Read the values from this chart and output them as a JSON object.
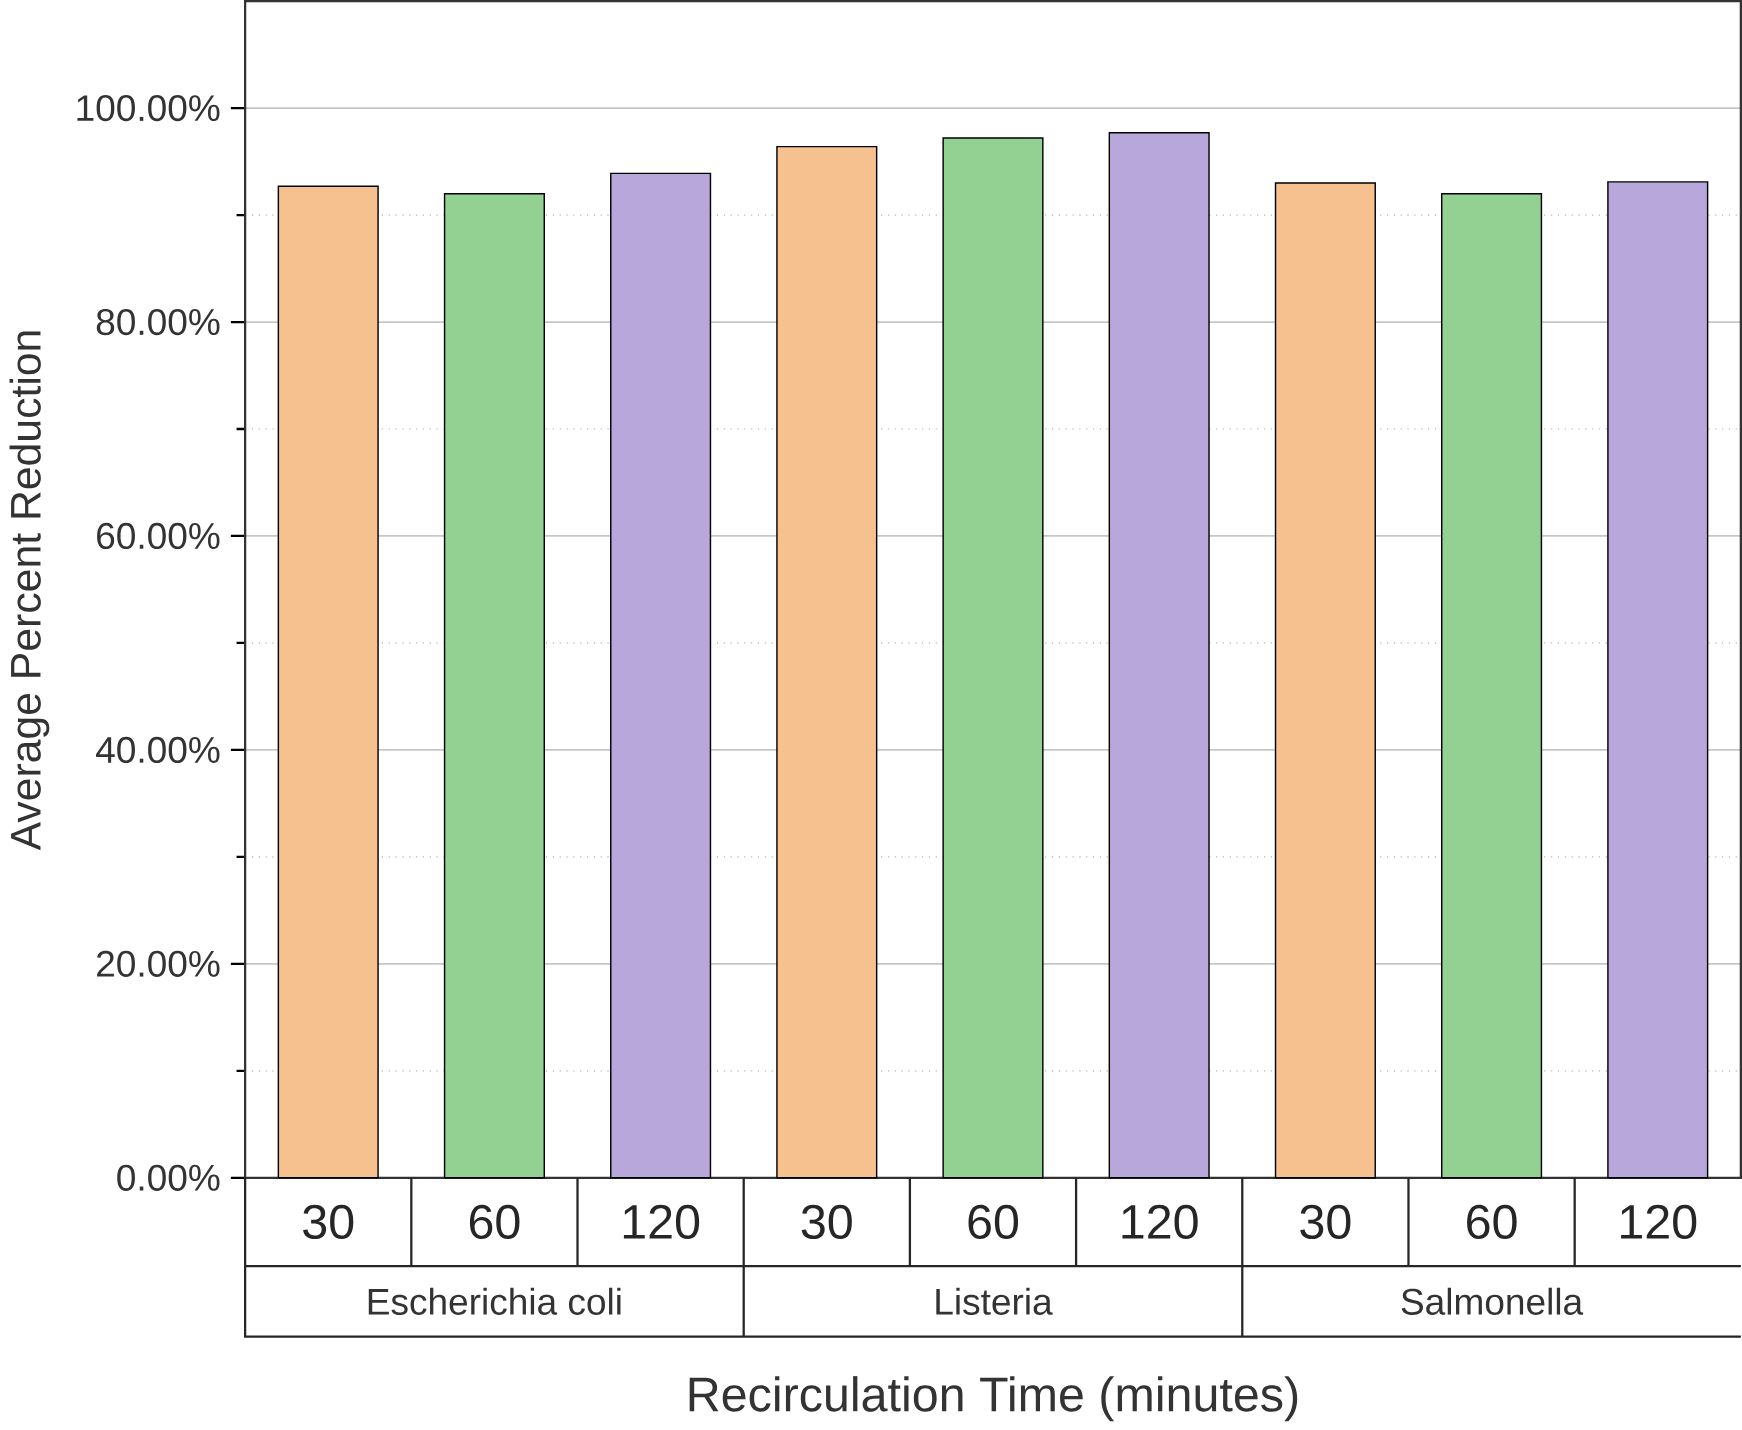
{
  "chart_data": {
    "type": "bar",
    "xlabel": "Recirculation Time (minutes)",
    "ylabel": "Average Percent Reduction",
    "categories": [
      "Escherichia coli",
      "Listeria",
      "Salmonella"
    ],
    "series": [
      {
        "name": "30",
        "color": "#f7c18f",
        "values": [
          92.7,
          96.4,
          93.0
        ]
      },
      {
        "name": "60",
        "color": "#92d191",
        "values": [
          92.0,
          97.2,
          92.0
        ]
      },
      {
        "name": "120",
        "color": "#b8a7da",
        "values": [
          93.9,
          97.7,
          93.1
        ]
      }
    ],
    "ylim": [
      0,
      110
    ],
    "yticks": [
      {
        "value": 0,
        "label": "0.00%"
      },
      {
        "value": 20,
        "label": "20.00%"
      },
      {
        "value": 40,
        "label": "40.00%"
      },
      {
        "value": 60,
        "label": "60.00%"
      },
      {
        "value": 80,
        "label": "80.00%"
      },
      {
        "value": 100,
        "label": "100.00%"
      }
    ],
    "grid": "y",
    "legend": false
  }
}
